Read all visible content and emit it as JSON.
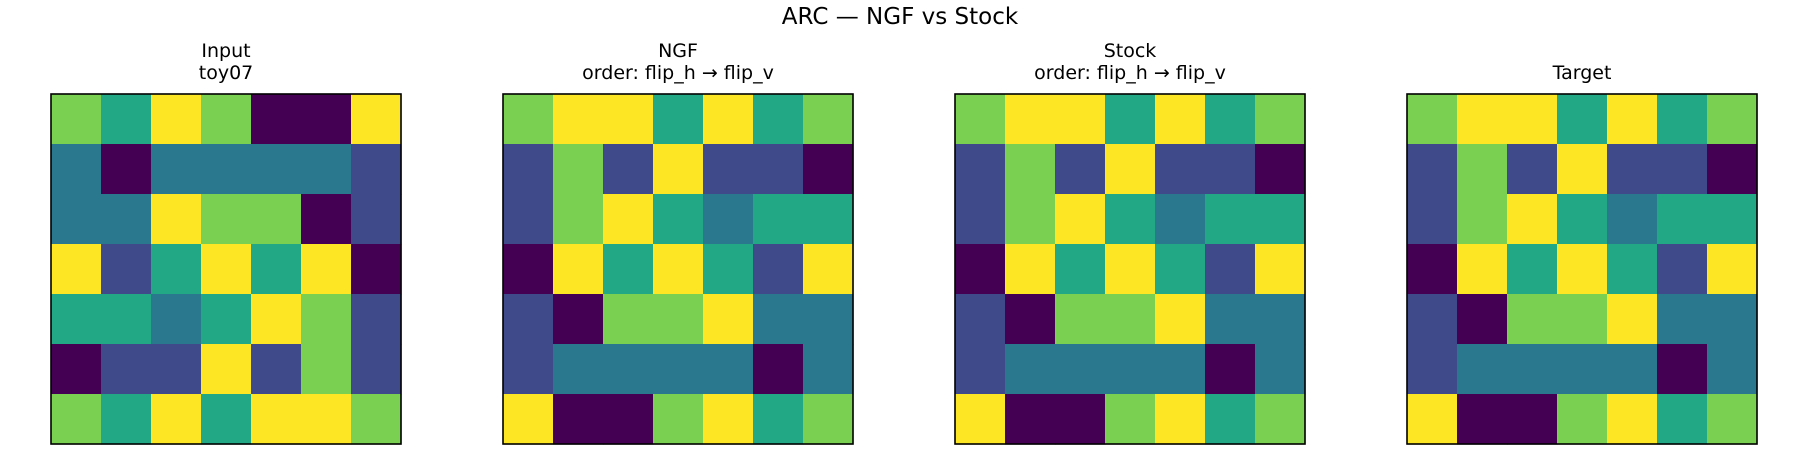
{
  "figure": {
    "suptitle": "ARC — NGF vs Stock"
  },
  "palette": {
    "0": "#440154",
    "1": "#3e4a89",
    "2": "#2a788e",
    "3": "#22a884",
    "4": "#7ad151",
    "5": "#fde725"
  },
  "chart_data": [
    {
      "type": "heatmap",
      "title": "Input",
      "subtitle": "toy07",
      "grid": [
        [
          4,
          3,
          5,
          4,
          0,
          0,
          5
        ],
        [
          2,
          0,
          2,
          2,
          2,
          2,
          1
        ],
        [
          2,
          2,
          5,
          4,
          4,
          0,
          1
        ],
        [
          5,
          1,
          3,
          5,
          3,
          5,
          0
        ],
        [
          3,
          3,
          2,
          3,
          5,
          4,
          1
        ],
        [
          0,
          1,
          1,
          5,
          1,
          4,
          1
        ],
        [
          4,
          3,
          5,
          3,
          5,
          5,
          4
        ]
      ]
    },
    {
      "type": "heatmap",
      "title": "NGF",
      "subtitle": "order: flip_h → flip_v",
      "grid": [
        [
          4,
          5,
          5,
          3,
          5,
          3,
          4
        ],
        [
          1,
          4,
          1,
          5,
          1,
          1,
          0
        ],
        [
          1,
          4,
          5,
          3,
          2,
          3,
          3
        ],
        [
          0,
          5,
          3,
          5,
          3,
          1,
          5
        ],
        [
          1,
          0,
          4,
          4,
          5,
          2,
          2
        ],
        [
          1,
          2,
          2,
          2,
          2,
          0,
          2
        ],
        [
          5,
          0,
          0,
          4,
          5,
          3,
          4
        ]
      ]
    },
    {
      "type": "heatmap",
      "title": "Stock",
      "subtitle": "order: flip_h → flip_v",
      "grid": [
        [
          4,
          5,
          5,
          3,
          5,
          3,
          4
        ],
        [
          1,
          4,
          1,
          5,
          1,
          1,
          0
        ],
        [
          1,
          4,
          5,
          3,
          2,
          3,
          3
        ],
        [
          0,
          5,
          3,
          5,
          3,
          1,
          5
        ],
        [
          1,
          0,
          4,
          4,
          5,
          2,
          2
        ],
        [
          1,
          2,
          2,
          2,
          2,
          0,
          2
        ],
        [
          5,
          0,
          0,
          4,
          5,
          3,
          4
        ]
      ]
    },
    {
      "type": "heatmap",
      "title": "Target",
      "subtitle": "",
      "grid": [
        [
          4,
          5,
          5,
          3,
          5,
          3,
          4
        ],
        [
          1,
          4,
          1,
          5,
          1,
          1,
          0
        ],
        [
          1,
          4,
          5,
          3,
          2,
          3,
          3
        ],
        [
          0,
          5,
          3,
          5,
          3,
          1,
          5
        ],
        [
          1,
          0,
          4,
          4,
          5,
          2,
          2
        ],
        [
          1,
          2,
          2,
          2,
          2,
          0,
          2
        ],
        [
          5,
          0,
          0,
          4,
          5,
          3,
          4
        ]
      ]
    }
  ]
}
